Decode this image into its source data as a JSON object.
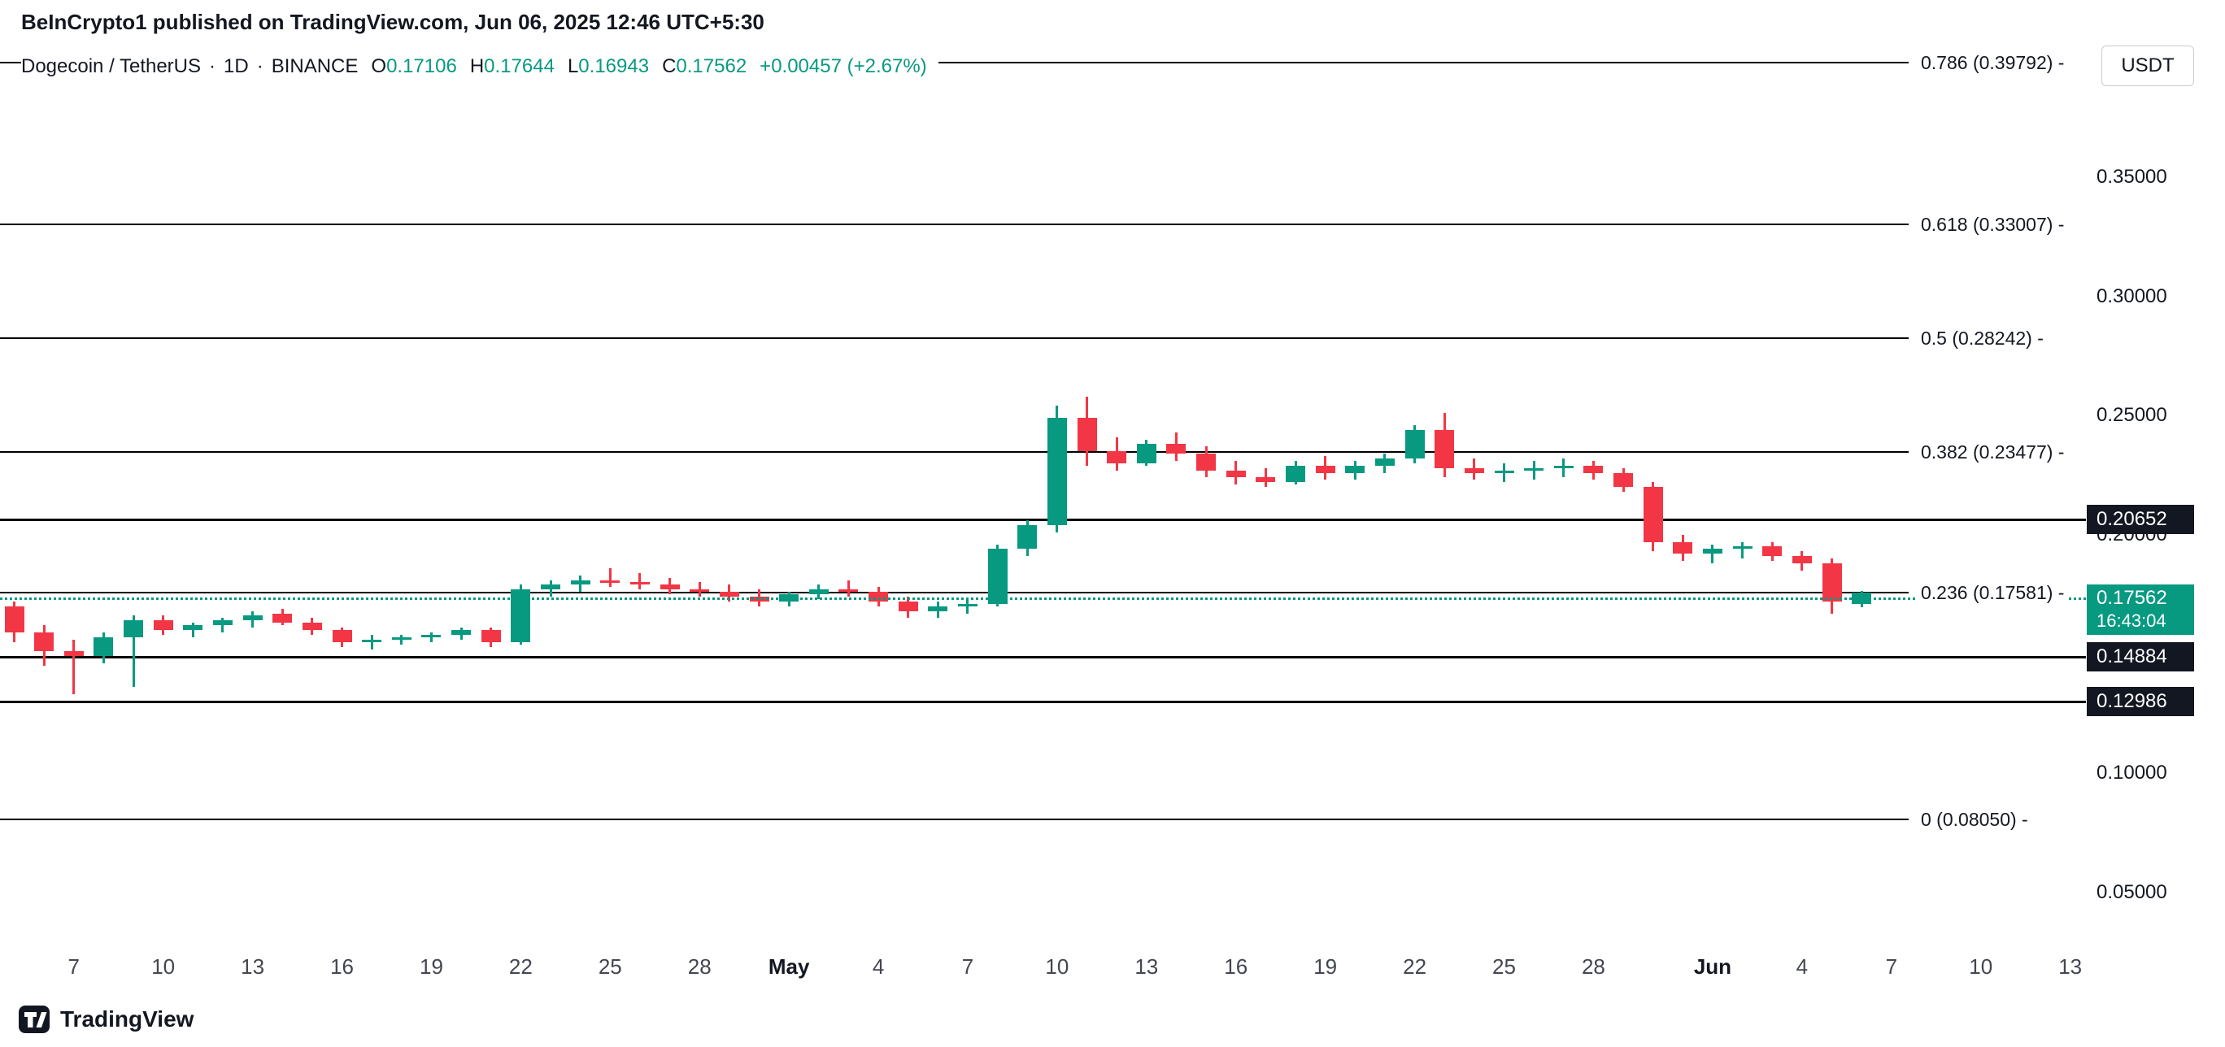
{
  "header": {
    "published": "BeInCrypto1 published on TradingView.com, Jun 06, 2025 12:46 UTC+5:30"
  },
  "legend": {
    "symbol": "Dogecoin / TetherUS",
    "separator": "·",
    "interval": "1D",
    "exchange": "BINANCE",
    "open_label": "O",
    "open": "0.17106",
    "high_label": "H",
    "high": "0.17644",
    "low_label": "L",
    "low": "0.16943",
    "close_label": "C",
    "close": "0.17562",
    "change": "+0.00457 (+2.67%)"
  },
  "footer": {
    "brand": "TradingView"
  },
  "chart_data": {
    "type": "candlestick",
    "title": "Dogecoin / TetherUS · 1D · BINANCE",
    "colors": {
      "up": "#089981",
      "down": "#f23645",
      "levels": "#000000",
      "badge_bg": "#131722",
      "active_badge": "#089981"
    },
    "columns": [
      "date",
      "open",
      "high",
      "low",
      "close"
    ],
    "candles": [
      [
        "Apr 5",
        0.17,
        0.172,
        0.155,
        0.159
      ],
      [
        "Apr 6",
        0.159,
        0.162,
        0.145,
        0.151
      ],
      [
        "Apr 7",
        0.151,
        0.156,
        0.133,
        0.149
      ],
      [
        "Apr 8",
        0.149,
        0.159,
        0.146,
        0.157
      ],
      [
        "Apr 9",
        0.157,
        0.166,
        0.136,
        0.164
      ],
      [
        "Apr 10",
        0.164,
        0.166,
        0.158,
        0.16
      ],
      [
        "Apr 11",
        0.16,
        0.163,
        0.157,
        0.162
      ],
      [
        "Apr 12",
        0.162,
        0.165,
        0.159,
        0.164
      ],
      [
        "Apr 13",
        0.164,
        0.168,
        0.161,
        0.166
      ],
      [
        "Apr 14",
        0.167,
        0.169,
        0.162,
        0.163
      ],
      [
        "Apr 15",
        0.163,
        0.165,
        0.158,
        0.16
      ],
      [
        "Apr 16",
        0.16,
        0.161,
        0.153,
        0.155
      ],
      [
        "Apr 17",
        0.155,
        0.158,
        0.152,
        0.156
      ],
      [
        "Apr 18",
        0.156,
        0.158,
        0.154,
        0.157
      ],
      [
        "Apr 19",
        0.157,
        0.159,
        0.155,
        0.158
      ],
      [
        "Apr 20",
        0.158,
        0.161,
        0.156,
        0.16
      ],
      [
        "Apr 21",
        0.16,
        0.161,
        0.153,
        0.155
      ],
      [
        "Apr 22",
        0.155,
        0.179,
        0.154,
        0.177
      ],
      [
        "Apr 23",
        0.177,
        0.181,
        0.174,
        0.179
      ],
      [
        "Apr 24",
        0.179,
        0.183,
        0.176,
        0.181
      ],
      [
        "Apr 25",
        0.181,
        0.186,
        0.178,
        0.18
      ],
      [
        "Apr 26",
        0.18,
        0.184,
        0.177,
        0.179
      ],
      [
        "Apr 27",
        0.179,
        0.182,
        0.175,
        0.177
      ],
      [
        "Apr 28",
        0.177,
        0.18,
        0.174,
        0.176
      ],
      [
        "Apr 29",
        0.176,
        0.179,
        0.172,
        0.174
      ],
      [
        "Apr 30",
        0.174,
        0.177,
        0.17,
        0.172
      ],
      [
        "May 1",
        0.172,
        0.176,
        0.17,
        0.175
      ],
      [
        "May 2",
        0.175,
        0.179,
        0.173,
        0.177
      ],
      [
        "May 3",
        0.177,
        0.181,
        0.174,
        0.176
      ],
      [
        "May 4",
        0.176,
        0.178,
        0.17,
        0.172
      ],
      [
        "May 5",
        0.172,
        0.174,
        0.165,
        0.168
      ],
      [
        "May 6",
        0.168,
        0.172,
        0.165,
        0.17
      ],
      [
        "May 7",
        0.17,
        0.173,
        0.167,
        0.171
      ],
      [
        "May 8",
        0.171,
        0.196,
        0.17,
        0.194
      ],
      [
        "May 9",
        0.194,
        0.206,
        0.191,
        0.204
      ],
      [
        "May 10",
        0.204,
        0.254,
        0.201,
        0.249
      ],
      [
        "May 11",
        0.249,
        0.258,
        0.229,
        0.235
      ],
      [
        "May 12",
        0.235,
        0.241,
        0.227,
        0.23
      ],
      [
        "May 13",
        0.23,
        0.24,
        0.229,
        0.238
      ],
      [
        "May 14",
        0.238,
        0.243,
        0.231,
        0.234
      ],
      [
        "May 15",
        0.234,
        0.237,
        0.224,
        0.227
      ],
      [
        "May 16",
        0.227,
        0.231,
        0.221,
        0.224
      ],
      [
        "May 17",
        0.224,
        0.228,
        0.22,
        0.222
      ],
      [
        "May 18",
        0.222,
        0.231,
        0.221,
        0.229
      ],
      [
        "May 19",
        0.229,
        0.233,
        0.223,
        0.226
      ],
      [
        "May 20",
        0.226,
        0.231,
        0.223,
        0.229
      ],
      [
        "May 21",
        0.229,
        0.234,
        0.226,
        0.232
      ],
      [
        "May 22",
        0.232,
        0.246,
        0.23,
        0.244
      ],
      [
        "May 23",
        0.244,
        0.251,
        0.224,
        0.228
      ],
      [
        "May 24",
        0.228,
        0.232,
        0.223,
        0.226
      ],
      [
        "May 25",
        0.226,
        0.23,
        0.222,
        0.227
      ],
      [
        "May 26",
        0.227,
        0.231,
        0.223,
        0.228
      ],
      [
        "May 27",
        0.228,
        0.232,
        0.224,
        0.229
      ],
      [
        "May 28",
        0.229,
        0.231,
        0.223,
        0.226
      ],
      [
        "May 29",
        0.226,
        0.228,
        0.218,
        0.22
      ],
      [
        "May 30",
        0.22,
        0.222,
        0.193,
        0.197
      ],
      [
        "May 31",
        0.197,
        0.2,
        0.189,
        0.192
      ],
      [
        "Jun 1",
        0.192,
        0.196,
        0.188,
        0.194
      ],
      [
        "Jun 2",
        0.194,
        0.197,
        0.19,
        0.195
      ],
      [
        "Jun 3",
        0.195,
        0.197,
        0.189,
        0.191
      ],
      [
        "Jun 4",
        0.191,
        0.193,
        0.185,
        0.188
      ],
      [
        "Jun 5",
        0.188,
        0.19,
        0.167,
        0.172
      ],
      [
        "Jun 6",
        0.17106,
        0.17644,
        0.16943,
        0.17562
      ]
    ],
    "fib_levels": [
      {
        "label": "0.786 (0.39792) -",
        "price": 0.39792
      },
      {
        "label": "0.618 (0.33007) -",
        "price": 0.33007
      },
      {
        "label": "0.5 (0.28242) -",
        "price": 0.28242
      },
      {
        "label": "0.382 (0.23477) -",
        "price": 0.23477
      },
      {
        "label": "0.236 (0.17581) -",
        "price": 0.17581
      },
      {
        "label": "0 (0.08050) -",
        "price": 0.0805
      }
    ],
    "support_resistance": [
      {
        "label": "0.20652",
        "price": 0.20652
      },
      {
        "label": "0.14884",
        "price": 0.14884
      },
      {
        "label": "0.12986",
        "price": 0.12986
      }
    ],
    "last_price": {
      "label": "0.17562",
      "countdown": "16:43:04",
      "price": 0.17562
    },
    "price_axis": {
      "currency": "USDT",
      "ticks": [
        {
          "label": "0.35000",
          "price": 0.35
        },
        {
          "label": "0.30000",
          "price": 0.3
        },
        {
          "label": "0.25000",
          "price": 0.25
        },
        {
          "label": "0.20000",
          "price": 0.2
        },
        {
          "label": "0.10000",
          "price": 0.1
        },
        {
          "label": "0.05000",
          "price": 0.05
        }
      ]
    },
    "time_axis": {
      "ticks": [
        {
          "index": 2,
          "label": "7"
        },
        {
          "index": 5,
          "label": "10"
        },
        {
          "index": 8,
          "label": "13"
        },
        {
          "index": 11,
          "label": "16"
        },
        {
          "index": 14,
          "label": "19"
        },
        {
          "index": 17,
          "label": "22"
        },
        {
          "index": 20,
          "label": "25"
        },
        {
          "index": 23,
          "label": "28"
        },
        {
          "index": 26,
          "label": "May",
          "bold": true
        },
        {
          "index": 29,
          "label": "4"
        },
        {
          "index": 32,
          "label": "7"
        },
        {
          "index": 35,
          "label": "10"
        },
        {
          "index": 38,
          "label": "13"
        },
        {
          "index": 41,
          "label": "16"
        },
        {
          "index": 44,
          "label": "19"
        },
        {
          "index": 47,
          "label": "22"
        },
        {
          "index": 50,
          "label": "25"
        },
        {
          "index": 53,
          "label": "28"
        },
        {
          "index": 57,
          "label": "Jun",
          "bold": true
        },
        {
          "index": 60,
          "label": "4"
        },
        {
          "index": 63,
          "label": "7"
        },
        {
          "index": 66,
          "label": "10"
        },
        {
          "index": 69,
          "label": "13"
        }
      ]
    },
    "ylim_visible": [
      0.03,
      0.41
    ]
  }
}
